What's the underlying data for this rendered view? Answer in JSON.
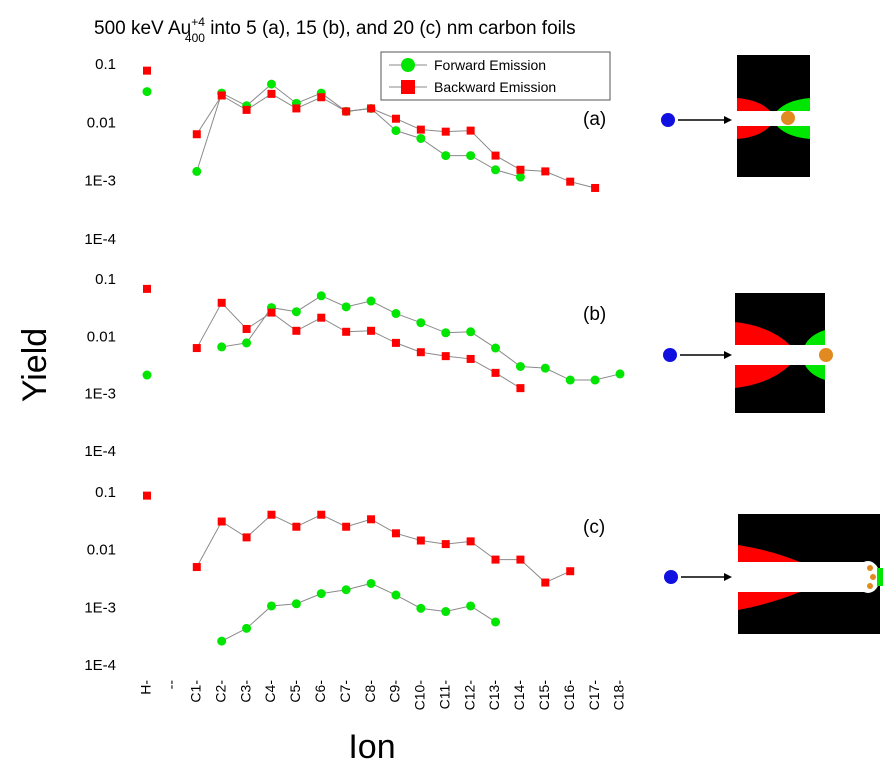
{
  "title": {
    "text_before": "500 keV Au",
    "superscript": "+4",
    "subscript": "400",
    "text_after": " into 5 (a), 15 (b), and 20 (c) nm carbon foils"
  },
  "x_axis": {
    "label": "Ion",
    "categories": [
      "H-",
      "--",
      "C1-",
      "C2-",
      "C3-",
      "C4-",
      "C5-",
      "C6-",
      "C7-",
      "C8-",
      "C9-",
      "C10-",
      "C11-",
      "C12-",
      "C13-",
      "C14-",
      "C15-",
      "C16-",
      "C17-",
      "C18-"
    ]
  },
  "y_axis": {
    "label": "Yield"
  },
  "chart_data": [
    {
      "type": "line",
      "annotation": "(a)",
      "log_scale_y": true,
      "grid": false,
      "legend": "top",
      "ylim": [
        0.0001,
        0.1
      ],
      "yticks": [
        0.1,
        0.01,
        {
          "value": 0.001,
          "label": "1E-3"
        },
        {
          "value": 0.0001,
          "label": "1E-4"
        }
      ],
      "series": [
        {
          "name": "Forward Emission",
          "color": "#00e600",
          "marker": "circle",
          "values": [
            0.035,
            null,
            0.0015,
            0.033,
            0.02,
            0.047,
            0.022,
            0.033,
            0.016,
            0.018,
            0.0075,
            0.0055,
            0.0028,
            0.0028,
            0.0016,
            0.0012,
            null,
            null,
            null,
            null
          ]
        },
        {
          "name": "Backward Emission",
          "color": "#ff0000",
          "marker": "square",
          "values": [
            0.08,
            null,
            0.0065,
            0.03,
            0.017,
            0.032,
            0.018,
            0.028,
            0.016,
            0.018,
            0.012,
            0.0078,
            0.0072,
            0.0075,
            0.0028,
            0.0016,
            0.0015,
            0.001,
            0.00078,
            null
          ]
        }
      ]
    },
    {
      "type": "line",
      "annotation": "(b)",
      "log_scale_y": true,
      "grid": false,
      "ylim": [
        0.0001,
        0.1
      ],
      "yticks": [
        0.1,
        0.01,
        {
          "value": 0.001,
          "label": "1E-3"
        },
        {
          "value": 0.0001,
          "label": "1E-4"
        }
      ],
      "series": [
        {
          "color": "#00e600",
          "marker": "circle",
          "values": [
            0.0022,
            null,
            null,
            0.0068,
            0.008,
            0.033,
            0.028,
            0.053,
            0.034,
            0.043,
            0.026,
            0.018,
            0.012,
            0.0125,
            0.0065,
            0.0031,
            0.0029,
            0.0018,
            0.0018,
            0.0023
          ]
        },
        {
          "color": "#ff0000",
          "marker": "square",
          "values": [
            0.07,
            null,
            0.0065,
            0.04,
            0.014,
            0.027,
            0.013,
            0.022,
            0.0125,
            0.013,
            0.008,
            0.0055,
            0.0047,
            0.0042,
            0.0024,
            0.0013,
            null,
            null,
            null,
            null
          ]
        }
      ]
    },
    {
      "type": "line",
      "annotation": "(c)",
      "log_scale_y": true,
      "grid": false,
      "ylim": [
        0.0001,
        0.1
      ],
      "yticks": [
        0.1,
        0.01,
        {
          "value": 0.001,
          "label": "1E-3"
        },
        {
          "value": 0.0001,
          "label": "1E-4"
        }
      ],
      "series": [
        {
          "color": "#00e600",
          "marker": "circle",
          "values": [
            null,
            null,
            null,
            0.00027,
            0.00045,
            0.0011,
            0.0012,
            0.0018,
            0.0021,
            0.0027,
            0.0017,
            0.001,
            0.00088,
            0.0011,
            0.00058,
            null,
            null,
            null,
            null,
            null
          ]
        },
        {
          "color": "#ff0000",
          "marker": "square",
          "values": [
            0.09,
            null,
            0.0052,
            0.032,
            0.017,
            0.042,
            0.026,
            0.042,
            0.026,
            0.035,
            0.02,
            0.015,
            0.013,
            0.0145,
            0.007,
            0.007,
            0.0028,
            0.0044,
            null,
            null
          ]
        }
      ]
    }
  ]
}
